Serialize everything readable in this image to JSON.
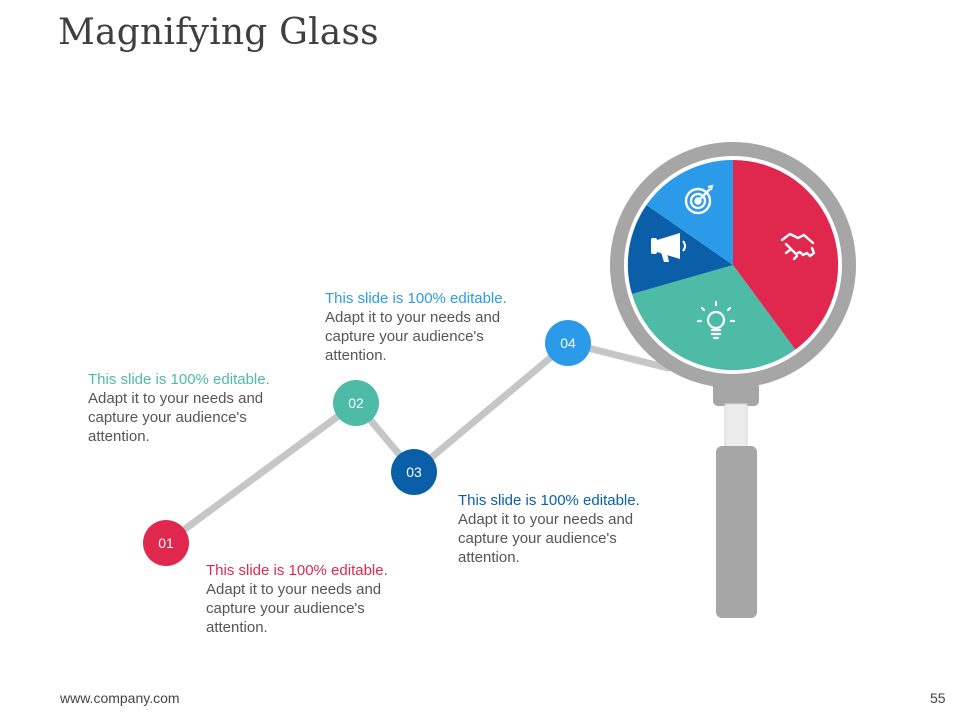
{
  "title": "Magnifying Glass",
  "colors": {
    "red": "#e0284f",
    "teal": "#4dbba6",
    "dark_blue": "#0b5fa8",
    "light_blue": "#2b9be9",
    "gray": "#a6a6a6"
  },
  "nodes": [
    {
      "label": "01",
      "color": "#e0284f"
    },
    {
      "label": "02",
      "color": "#4dbba6"
    },
    {
      "label": "03",
      "color": "#0b5fa8"
    },
    {
      "label": "04",
      "color": "#2b9be9"
    }
  ],
  "text_boxes": [
    {
      "head": "This slide is 100% editable.",
      "body": "Adapt it to your needs and capture your audience's attention."
    },
    {
      "head": "This slide is 100% editable.",
      "body": "Adapt it to your needs and capture your audience's attention."
    },
    {
      "head": "This slide is 100% editable.",
      "body": "Adapt it to your needs and capture your audience's attention."
    },
    {
      "head": "This slide is 100% editable.",
      "body": "Adapt it to your needs and capture your audience's attention."
    }
  ],
  "lens_icons": [
    "target-icon",
    "megaphone-icon",
    "lightbulb-icon",
    "handshake-icon"
  ],
  "footer": {
    "url": "www.company.com",
    "page": "55"
  }
}
